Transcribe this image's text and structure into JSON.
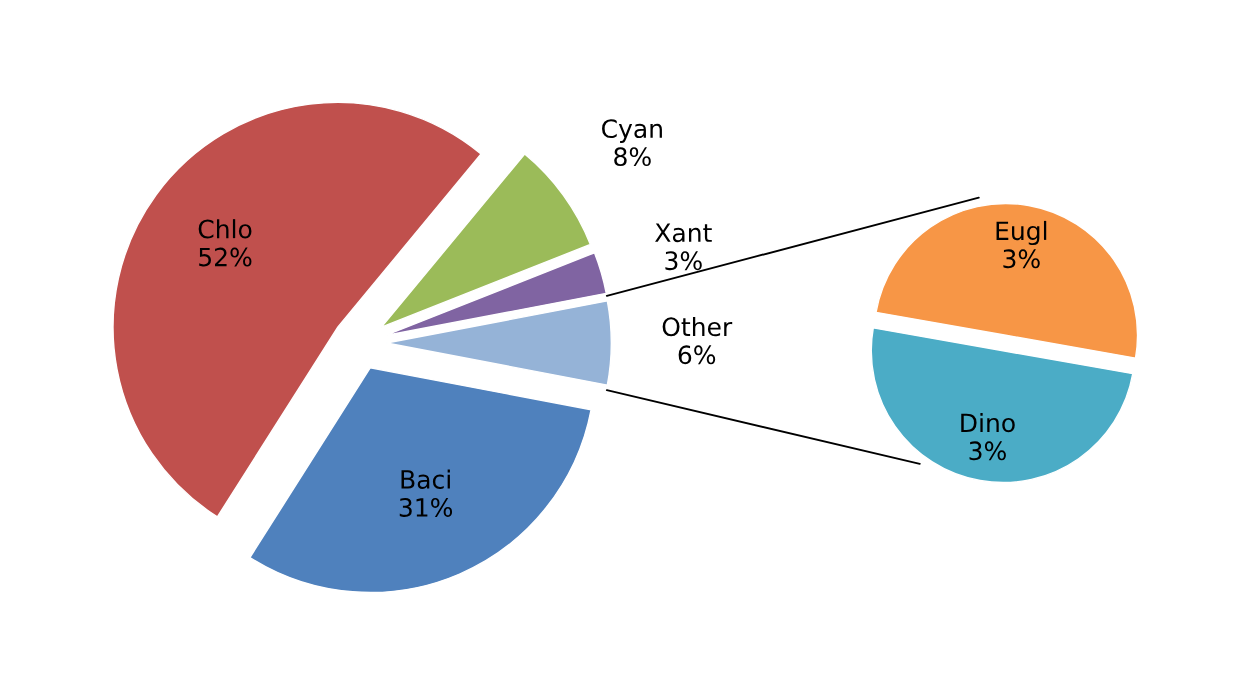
{
  "chart_data": [
    {
      "type": "pie",
      "categories": [
        "Other",
        "Xant",
        "Cyan",
        "Chlo",
        "Baci"
      ],
      "values": [
        6,
        3,
        8,
        52,
        31
      ],
      "value_labels": [
        "6%",
        "3%",
        "8%",
        "52%",
        "31%"
      ],
      "colors": [
        "#95b3d7",
        "#8064a2",
        "#9bbb59",
        "#c0504d",
        "#4f81bd"
      ]
    },
    {
      "type": "pie",
      "categories": [
        "Eugl",
        "Dino"
      ],
      "values": [
        3,
        3
      ],
      "value_labels": [
        "3%",
        "3%"
      ],
      "colors": [
        "#f79646",
        "#4bacc6"
      ]
    }
  ]
}
